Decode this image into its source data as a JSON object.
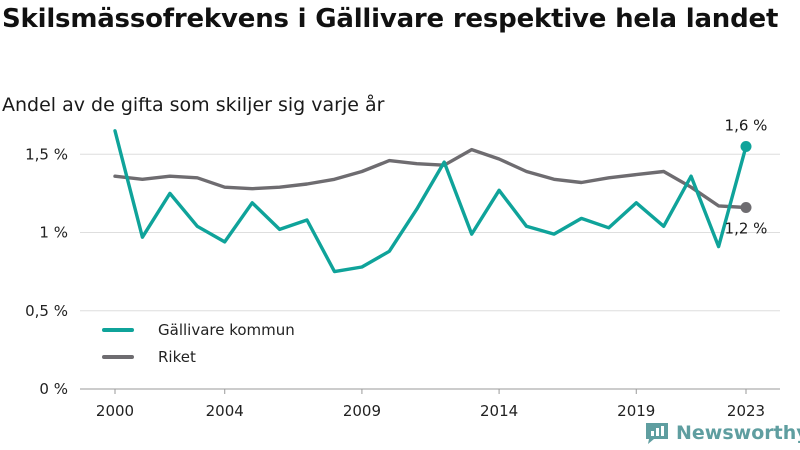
{
  "header": {
    "title": "Skilsmässofrekvens i Gällivare respektive hela landet",
    "subtitle": "Andel av de gifta som skiljer sig varje år"
  },
  "branding": {
    "name": "Newsworthy",
    "color": "#5f9ea0"
  },
  "chart_data": {
    "type": "line",
    "title": "Skilsmässofrekvens i Gällivare respektive hela landet",
    "subtitle": "Andel av de gifta som skiljer sig varje år",
    "x": [
      2000,
      2001,
      2002,
      2003,
      2004,
      2005,
      2006,
      2007,
      2008,
      2009,
      2010,
      2011,
      2012,
      2013,
      2014,
      2015,
      2016,
      2017,
      2018,
      2019,
      2020,
      2021,
      2022,
      2023
    ],
    "xticks": [
      2000,
      2004,
      2009,
      2014,
      2019,
      2023
    ],
    "xtick_labels": [
      "2000",
      "2004",
      "2009",
      "2014",
      "2019",
      "2023"
    ],
    "xlim": [
      2000,
      2023
    ],
    "ylim": [
      0,
      1.7
    ],
    "yticks": [
      0,
      0.5,
      1,
      1.5
    ],
    "ytick_labels": [
      "0 %",
      "0,5 %",
      "1 %",
      "1,5 %"
    ],
    "grid": true,
    "legend_position": "bottom-left",
    "series": [
      {
        "name": "Gällivare kommun",
        "color": "#0fa39a",
        "values": [
          1.65,
          0.97,
          1.25,
          1.04,
          0.94,
          1.19,
          1.02,
          1.08,
          0.75,
          0.78,
          0.88,
          1.15,
          1.45,
          0.99,
          1.27,
          1.04,
          0.99,
          1.09,
          1.03,
          1.19,
          1.04,
          1.36,
          0.91,
          1.55
        ],
        "end_label": "1,6 %"
      },
      {
        "name": "Riket",
        "color": "#6e6c70",
        "values": [
          1.36,
          1.34,
          1.36,
          1.35,
          1.29,
          1.28,
          1.29,
          1.31,
          1.34,
          1.39,
          1.46,
          1.44,
          1.43,
          1.53,
          1.47,
          1.39,
          1.34,
          1.32,
          1.35,
          1.37,
          1.39,
          1.29,
          1.17,
          1.16
        ],
        "end_label": "1,2 %"
      }
    ]
  }
}
